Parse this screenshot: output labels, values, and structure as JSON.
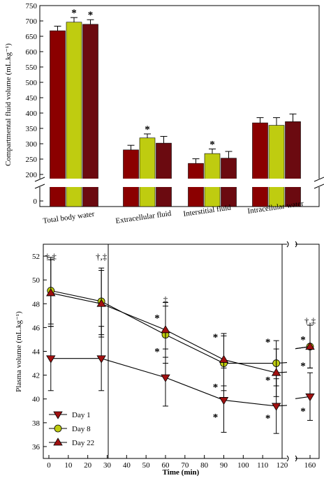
{
  "chart_data": [
    {
      "type": "bar",
      "ylabel": "Compartmental fluid volume (mL.kg⁻¹)",
      "ylim_upper": [
        200,
        750
      ],
      "ylim_lower": [
        0,
        0
      ],
      "axis_break": true,
      "yticks": [
        "750",
        "700",
        "650",
        "600",
        "550",
        "500",
        "450",
        "400",
        "350",
        "300",
        "250",
        "200",
        "0"
      ],
      "categories": [
        "Total body water",
        "Extracellular fluid",
        "Interstitial fluid",
        "Intracellular water"
      ],
      "series": [
        {
          "color": "#8b0000",
          "values": [
            668,
            280,
            236,
            368
          ],
          "errors": [
            15,
            15,
            15,
            17
          ],
          "stars": [
            false,
            false,
            false,
            false
          ]
        },
        {
          "color": "#bfcc10",
          "values": [
            696,
            319,
            268,
            360
          ],
          "errors": [
            15,
            13,
            15,
            25
          ],
          "stars": [
            true,
            true,
            true,
            false
          ]
        },
        {
          "color": "#6b0a10",
          "values": [
            689,
            302,
            253,
            372
          ],
          "errors": [
            15,
            22,
            22,
            25
          ],
          "stars": [
            true,
            false,
            false,
            false
          ]
        }
      ],
      "star_symbol": "*",
      "grid": false
    },
    {
      "type": "line",
      "xlabel": "Time (min)",
      "ylabel": "Plasma volume (mL.kg⁻¹)",
      "ylim": [
        35,
        53
      ],
      "yticks": [
        "52",
        "50",
        "48",
        "46",
        "44",
        "42",
        "40",
        "38",
        "36"
      ],
      "xticks": [
        "0",
        "10",
        "20",
        "30",
        "40",
        "50",
        "60",
        "70",
        "80",
        "90",
        "100",
        "110",
        "120",
        "160"
      ],
      "axis_break": true,
      "series": [
        {
          "name": "Day 1",
          "marker": "triangle-down",
          "color": "#a01010",
          "points": [
            {
              "x": 1,
              "y": 43.4,
              "err": 2.7
            },
            {
              "x": 27,
              "y": 43.4,
              "err": 2.7
            },
            {
              "x": 60,
              "y": 41.8,
              "err": 2.4
            },
            {
              "x": 90,
              "y": 39.9,
              "err": 2.7
            },
            {
              "x": 117,
              "y": 39.4,
              "err": 2.3
            },
            {
              "x": 160,
              "y": 40.2,
              "err": 2.0
            }
          ]
        },
        {
          "name": "Day 8",
          "marker": "circle",
          "color": "#bfcc10",
          "points": [
            {
              "x": 1,
              "y": 49.1,
              "err": 2.8
            },
            {
              "x": 27,
              "y": 48.2,
              "err": 2.8
            },
            {
              "x": 60,
              "y": 45.4,
              "err": 2.4
            },
            {
              "x": 90,
              "y": 43.0,
              "err": 2.3
            },
            {
              "x": 117,
              "y": 43.0,
              "err": 1.9
            },
            {
              "x": 160,
              "y": 44.4,
              "err": 1.8
            }
          ]
        },
        {
          "name": "Day 22",
          "marker": "triangle-up",
          "color": "#a01010",
          "points": [
            {
              "x": 1,
              "y": 48.9,
              "err": 2.8
            },
            {
              "x": 27,
              "y": 48.0,
              "err": 2.8
            },
            {
              "x": 60,
              "y": 45.8,
              "err": 2.3
            },
            {
              "x": 90,
              "y": 43.3,
              "err": 2.2
            },
            {
              "x": 117,
              "y": 42.2,
              "err": 2.0
            },
            {
              "x": 160,
              "y": 44.4,
              "err": 1.8
            }
          ]
        }
      ],
      "annotations": [
        {
          "text": "†,‡",
          "x": 1,
          "y": 52.0
        },
        {
          "text": "†,‡",
          "x": 27,
          "y": 52.0
        },
        {
          "text": "‡",
          "x": 60,
          "y": 48.4
        },
        {
          "text": "*",
          "x": 60,
          "y": 46.8
        },
        {
          "text": "*",
          "x": 60,
          "y": 44.0
        },
        {
          "text": "*",
          "x": 90,
          "y": 45.2
        },
        {
          "text": "*",
          "x": 90,
          "y": 41.0
        },
        {
          "text": "*",
          "x": 90,
          "y": 38.5
        },
        {
          "text": "*",
          "x": 117,
          "y": 44.8
        },
        {
          "text": "*",
          "x": 117,
          "y": 41.6
        },
        {
          "text": "*",
          "x": 117,
          "y": 38.4
        },
        {
          "text": "†,‡",
          "x": 160,
          "y": 46.6
        },
        {
          "text": "*",
          "x": 160,
          "y": 45.0
        },
        {
          "text": "*",
          "x": 160,
          "y": 42.8
        },
        {
          "text": "*",
          "x": 160,
          "y": 39.0
        }
      ],
      "legend_position": "bottom-left",
      "grid": false
    }
  ]
}
